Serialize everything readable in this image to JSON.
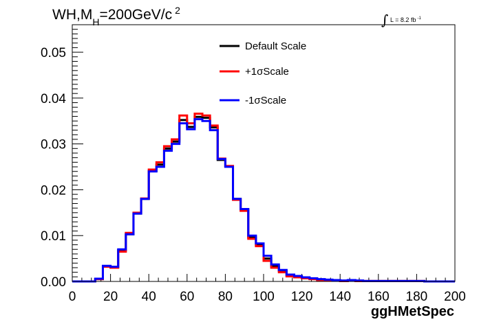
{
  "chart_data": {
    "type": "line",
    "title": {
      "main": "WH,M",
      "sub": "H",
      "rest": "=200GeV/c",
      "sup": "2"
    },
    "luminosity": {
      "integral": "∫",
      "text": "L = 8.2 fb",
      "sup": "-1"
    },
    "xlabel": "ggHMetSpec",
    "ylabel": "",
    "xlim": [
      0,
      200
    ],
    "ylim": [
      0,
      0.056
    ],
    "xticks": [
      0,
      20,
      40,
      60,
      80,
      100,
      120,
      140,
      160,
      180,
      200
    ],
    "xtick_labels": [
      "0",
      "20",
      "40",
      "60",
      "80",
      "100",
      "120",
      "140",
      "160",
      "180",
      "200"
    ],
    "yticks": [
      0,
      0.01,
      0.02,
      0.03,
      0.04,
      0.05
    ],
    "ytick_labels": [
      "0.00",
      "0.01",
      "0.02",
      "0.03",
      "0.04",
      "0.05"
    ],
    "bin_width": 4,
    "grid": false,
    "legend_position": "top-center",
    "series": [
      {
        "name": "Default Scale",
        "color": "#000000",
        "values": [
          0,
          0,
          0,
          0.0005,
          0.0033,
          0.0031,
          0.0068,
          0.0103,
          0.0148,
          0.018,
          0.0241,
          0.0255,
          0.029,
          0.0305,
          0.0352,
          0.0337,
          0.0359,
          0.0357,
          0.0336,
          0.0265,
          0.0251,
          0.018,
          0.0157,
          0.0096,
          0.008,
          0.005,
          0.0033,
          0.0023,
          0.0013,
          0.001,
          0.0008,
          0.0006,
          0.0004,
          0.0003,
          0.0002,
          0.0001,
          0.0002,
          0.0001,
          0.0001,
          0.0001,
          0.0001,
          0.0001,
          0.0001,
          0.0001,
          0.0001,
          0.0001,
          0,
          0,
          0,
          0
        ]
      },
      {
        "name": "+1σScale",
        "color": "#ff0000",
        "values": [
          0,
          0,
          0,
          0.0005,
          0.0032,
          0.003,
          0.0065,
          0.0106,
          0.015,
          0.0181,
          0.0244,
          0.026,
          0.0295,
          0.031,
          0.0362,
          0.0345,
          0.0366,
          0.0362,
          0.034,
          0.0268,
          0.0252,
          0.0178,
          0.0154,
          0.0093,
          0.0077,
          0.0045,
          0.003,
          0.002,
          0.0011,
          0.0009,
          0.0007,
          0.0005,
          0.0003,
          0.0002,
          0.0002,
          0.0001,
          0.0002,
          0.0001,
          0.0001,
          0.0001,
          0.0001,
          0.0001,
          0.0001,
          0.0001,
          0.0001,
          0.0001,
          0,
          0,
          0,
          0
        ]
      },
      {
        "name": "-1σScale",
        "color": "#0000ff",
        "values": [
          0,
          0,
          0,
          0.0006,
          0.0034,
          0.0032,
          0.007,
          0.0103,
          0.0148,
          0.018,
          0.024,
          0.025,
          0.0285,
          0.03,
          0.0345,
          0.0332,
          0.0354,
          0.035,
          0.033,
          0.0267,
          0.025,
          0.018,
          0.0158,
          0.01,
          0.0083,
          0.0056,
          0.0037,
          0.0025,
          0.0015,
          0.0012,
          0.0009,
          0.0007,
          0.0005,
          0.0004,
          0.0003,
          0.0002,
          0.0003,
          0.0002,
          0.0001,
          0.0001,
          0.0001,
          0.0001,
          0.0001,
          0.0001,
          0.0001,
          0.0001,
          0,
          0,
          0,
          0
        ]
      }
    ]
  }
}
